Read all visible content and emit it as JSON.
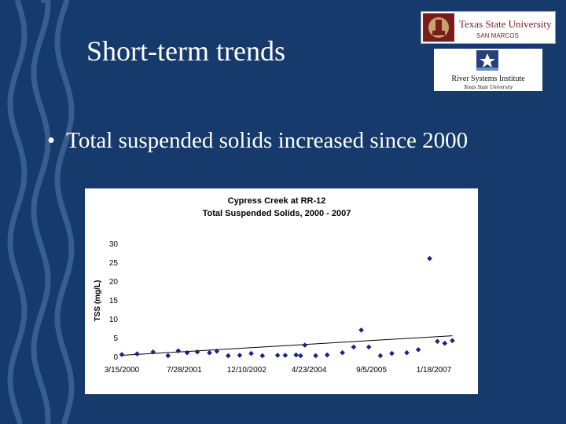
{
  "slide": {
    "title": "Short-term trends",
    "bullet_symbol": "•",
    "bullet_text": "Total suspended solids increased since 2000"
  },
  "logos": {
    "university": {
      "name": "Texas State University",
      "sub": "SAN MARCOS"
    },
    "institute": {
      "name": "River Systems Institute",
      "sub": "Texas State University"
    }
  },
  "colors": {
    "background": "#163a6b",
    "marker": "#1a237e",
    "accent": "#7a1c1c"
  },
  "chart_data": {
    "type": "scatter",
    "title": "Cypress Creek at RR-12",
    "subtitle": "Total Suspended Solids, 2000 - 2007",
    "xlabel": "",
    "ylabel": "TSS (mg/L)",
    "ylim": [
      0,
      30
    ],
    "yticks": [
      0,
      5,
      10,
      15,
      20,
      25,
      30
    ],
    "xlim": [
      "2000-03-15",
      "2007-07-01"
    ],
    "xticks": [
      "2000-03-15",
      "2001-07-28",
      "2002-12-10",
      "2004-04-23",
      "2005-09-05",
      "2007-01-18"
    ],
    "xtick_labels": [
      "3/15/2000",
      "7/28/2001",
      "12/10/2002",
      "4/23/2004",
      "9/5/2005",
      "1/18/2007"
    ],
    "grid": false,
    "legend": "none",
    "trendline": {
      "start": [
        "2000-03-15",
        0.3
      ],
      "end": [
        "2007-06-15",
        5.5
      ]
    },
    "series": [
      {
        "points": [
          [
            "2000-03-15",
            0.5
          ],
          [
            "2000-07-15",
            0.7
          ],
          [
            "2000-11-20",
            1.2
          ],
          [
            "2001-03-20",
            0.2
          ],
          [
            "2001-06-10",
            1.5
          ],
          [
            "2001-08-20",
            1.0
          ],
          [
            "2001-11-10",
            1.2
          ],
          [
            "2002-02-15",
            1.0
          ],
          [
            "2002-04-15",
            1.4
          ],
          [
            "2002-07-15",
            0.2
          ],
          [
            "2002-10-15",
            0.3
          ],
          [
            "2003-01-15",
            0.8
          ],
          [
            "2003-04-15",
            0.2
          ],
          [
            "2003-08-15",
            0.3
          ],
          [
            "2003-10-15",
            0.3
          ],
          [
            "2004-01-10",
            0.4
          ],
          [
            "2004-02-15",
            0.2
          ],
          [
            "2004-03-20",
            3.0
          ],
          [
            "2004-06-15",
            0.2
          ],
          [
            "2004-09-15",
            0.4
          ],
          [
            "2005-01-15",
            1.0
          ],
          [
            "2005-04-15",
            2.5
          ],
          [
            "2005-06-15",
            7.0
          ],
          [
            "2005-08-15",
            2.5
          ],
          [
            "2005-11-15",
            0.2
          ],
          [
            "2006-02-15",
            0.8
          ],
          [
            "2006-06-15",
            1.0
          ],
          [
            "2006-09-15",
            1.8
          ],
          [
            "2006-12-15",
            26.0
          ],
          [
            "2007-02-15",
            4.0
          ],
          [
            "2007-04-15",
            3.5
          ],
          [
            "2007-06-15",
            4.2
          ]
        ]
      }
    ]
  }
}
